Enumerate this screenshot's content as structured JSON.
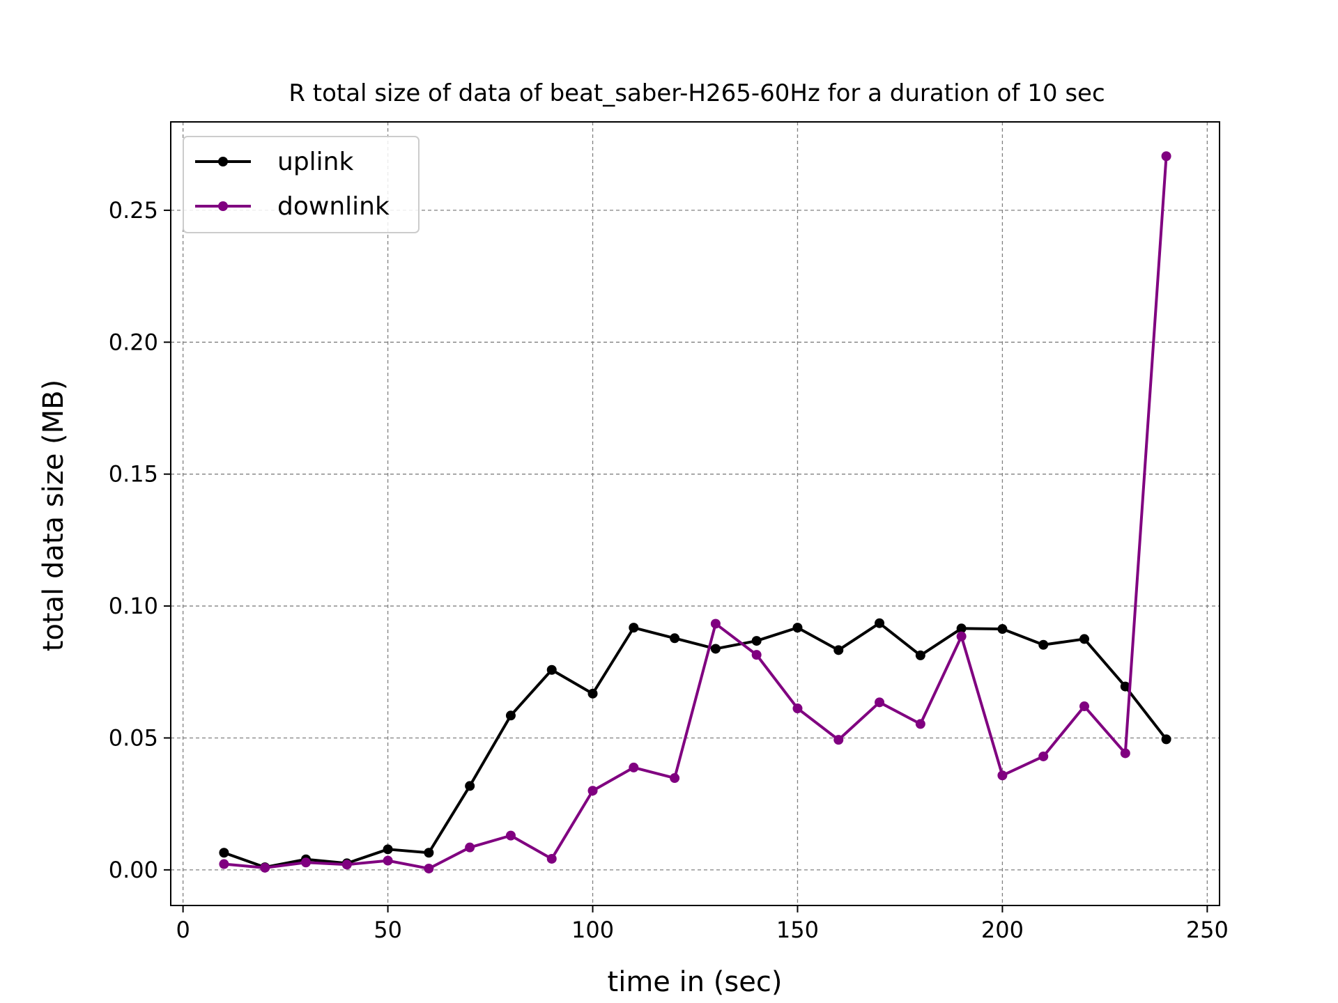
{
  "chart_data": {
    "type": "line",
    "title": "R total size of data of beat_saber-H265-60Hz for a duration of 10 sec",
    "xlabel": "time in (sec)",
    "ylabel": "total data size (MB)",
    "xlim": [
      -3,
      253
    ],
    "ylim": [
      -0.0135,
      0.2835
    ],
    "xticks": [
      0,
      50,
      100,
      150,
      200,
      250
    ],
    "xtick_labels": [
      "0",
      "50",
      "100",
      "150",
      "200",
      "250"
    ],
    "yticks": [
      0.0,
      0.05,
      0.1,
      0.15,
      0.2,
      0.25
    ],
    "ytick_labels": [
      "0.00",
      "0.05",
      "0.10",
      "0.15",
      "0.20",
      "0.25"
    ],
    "grid": true,
    "legend_position": "top-left",
    "x": [
      10,
      20,
      30,
      40,
      50,
      60,
      70,
      80,
      90,
      100,
      110,
      120,
      130,
      140,
      150,
      160,
      170,
      180,
      190,
      200,
      210,
      220,
      230,
      240
    ],
    "series": [
      {
        "name": "uplink",
        "color": "#000000",
        "values": [
          0.0065,
          0.001,
          0.004,
          0.0025,
          0.0078,
          0.0065,
          0.0318,
          0.0585,
          0.0758,
          0.0668,
          0.0918,
          0.0878,
          0.0838,
          0.0868,
          0.0918,
          0.0833,
          0.0935,
          0.0813,
          0.0915,
          0.0913,
          0.0853,
          0.0875,
          0.0695,
          0.0495
        ]
      },
      {
        "name": "downlink",
        "color": "#800080",
        "values": [
          0.0022,
          0.0008,
          0.0028,
          0.002,
          0.0035,
          0.0005,
          0.0085,
          0.013,
          0.0042,
          0.03,
          0.0388,
          0.0348,
          0.0933,
          0.0815,
          0.0612,
          0.0493,
          0.0635,
          0.0553,
          0.0885,
          0.0358,
          0.043,
          0.062,
          0.0442,
          0.2705
        ]
      }
    ]
  }
}
